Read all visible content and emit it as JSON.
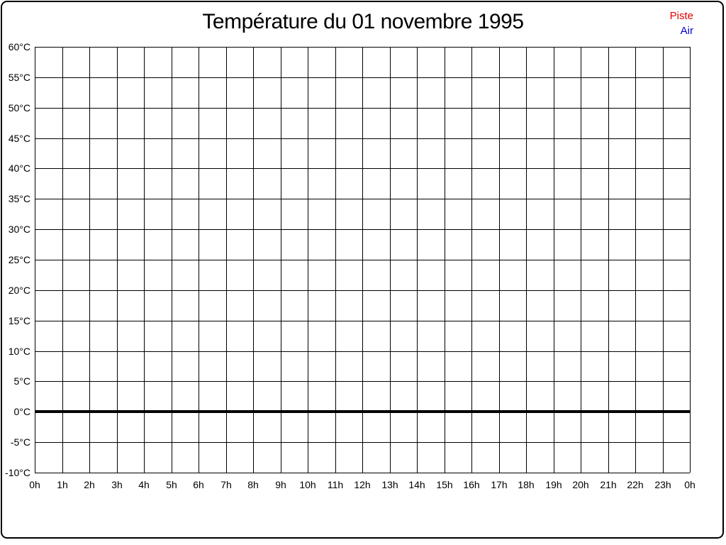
{
  "title": "Température du 01 novembre 1995",
  "legend": {
    "position": "top-right",
    "items": [
      {
        "label": "Piste",
        "color": "#e00000"
      },
      {
        "label": "Air",
        "color": "#0000d0"
      }
    ]
  },
  "chart_data": {
    "type": "line",
    "title": "Température du 01 novembre 1995",
    "xlabel": "",
    "ylabel": "",
    "xlim": [
      0,
      24
    ],
    "ylim": [
      -10,
      60
    ],
    "grid": true,
    "grid_color": "#000000",
    "x_ticks": [
      0,
      1,
      2,
      3,
      4,
      5,
      6,
      7,
      8,
      9,
      10,
      11,
      12,
      13,
      14,
      15,
      16,
      17,
      18,
      19,
      20,
      21,
      22,
      23,
      24
    ],
    "x_tick_labels": [
      "0h",
      "1h",
      "2h",
      "3h",
      "4h",
      "5h",
      "6h",
      "7h",
      "8h",
      "9h",
      "10h",
      "11h",
      "12h",
      "13h",
      "14h",
      "15h",
      "16h",
      "17h",
      "18h",
      "19h",
      "20h",
      "21h",
      "22h",
      "23h",
      "0h"
    ],
    "y_ticks": [
      60,
      55,
      50,
      45,
      40,
      35,
      30,
      25,
      20,
      15,
      10,
      5,
      0,
      -5,
      -10
    ],
    "y_tick_labels": [
      "60°C",
      "55°C",
      "50°C",
      "45°C",
      "40°C",
      "35°C",
      "30°C",
      "25°C",
      "20°C",
      "15°C",
      "10°C",
      "5°C",
      "0°C",
      "-5°C",
      "-10°C"
    ],
    "zero_line": {
      "value": 0,
      "color": "#000000",
      "thickness": 4
    },
    "series": [
      {
        "name": "Piste",
        "color": "#e00000",
        "values": []
      },
      {
        "name": "Air",
        "color": "#0000d0",
        "values": []
      }
    ]
  }
}
